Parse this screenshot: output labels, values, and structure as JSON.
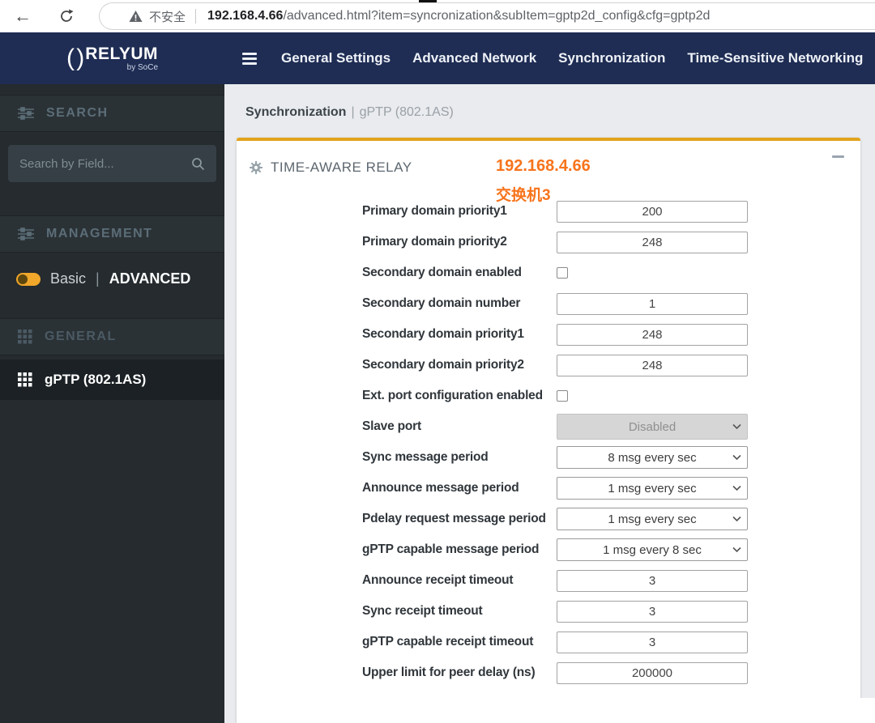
{
  "browser": {
    "back_glyph": "←",
    "security_warning": "不安全",
    "url_host": "192.168.4.66",
    "url_path": "/advanced.html?item=syncronization&subItem=gptp2d_config&cfg=gptp2d"
  },
  "navbar": {
    "logo_glyph": "( )",
    "logo_text": "RELYUM",
    "logo_sub": "by SoCe",
    "items": [
      "General Settings",
      "Advanced Network",
      "Synchronization",
      "Time-Sensitive Networking"
    ]
  },
  "sidebar": {
    "search_header": "SEARCH",
    "search_placeholder": "Search by Field...",
    "management_header": "MANAGEMENT",
    "toggle_off": "Basic",
    "toggle_sep": "|",
    "toggle_on": "ADVANCED",
    "general_header": "GENERAL",
    "active_item": "gPTP (802.1AS)"
  },
  "main": {
    "breadcrumb_primary": "Synchronization",
    "breadcrumb_sep": "|",
    "breadcrumb_secondary": "gPTP (802.1AS)",
    "panel_title": "TIME-AWARE RELAY",
    "annotation_ip": "192.168.4.66",
    "annotation_device": "交换机3",
    "form_rows": [
      {
        "label": "Primary domain priority1",
        "type": "input",
        "value": "200"
      },
      {
        "label": "Primary domain priority2",
        "type": "input",
        "value": "248"
      },
      {
        "label": "Secondary domain enabled",
        "type": "checkbox",
        "checked": false
      },
      {
        "label": "Secondary domain number",
        "type": "input",
        "value": "1"
      },
      {
        "label": "Secondary domain priority1",
        "type": "input",
        "value": "248"
      },
      {
        "label": "Secondary domain priority2",
        "type": "input",
        "value": "248"
      },
      {
        "label": "Ext. port configuration enabled",
        "type": "checkbox",
        "checked": false
      },
      {
        "label": "Slave port",
        "type": "select",
        "value": "Disabled",
        "disabled": true
      },
      {
        "label": "Sync message period",
        "type": "select",
        "value": "8 msg every sec",
        "disabled": false
      },
      {
        "label": "Announce message period",
        "type": "select",
        "value": "1 msg every sec",
        "disabled": false
      },
      {
        "label": "Pdelay request message period",
        "type": "select",
        "value": "1 msg every sec",
        "disabled": false
      },
      {
        "label": "gPTP capable message period",
        "type": "select",
        "value": "1 msg every 8 sec",
        "disabled": false
      },
      {
        "label": "Announce receipt timeout",
        "type": "input",
        "value": "3"
      },
      {
        "label": "Sync receipt timeout",
        "type": "input",
        "value": "3"
      },
      {
        "label": "gPTP capable receipt timeout",
        "type": "input",
        "value": "3"
      },
      {
        "label": "Upper limit for peer delay (ns)",
        "type": "input",
        "value": "200000"
      }
    ]
  },
  "colors": {
    "navbar_bg": "#1f2d54",
    "sidebar_bg": "#252b2e",
    "accent_gold": "#e1a41c",
    "toggle_yellow": "#f0a72a",
    "annotation_orange": "#f7741c",
    "main_bg": "#e9ebee"
  }
}
